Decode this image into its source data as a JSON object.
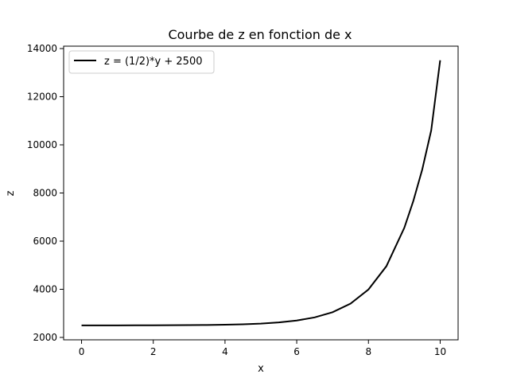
{
  "chart_data": {
    "type": "line",
    "title": "Courbe de z en fonction de x",
    "xlabel": "x",
    "ylabel": "z",
    "xlim": [
      -0.5,
      10.5
    ],
    "ylim": [
      1900,
      14100
    ],
    "xticks": [
      0,
      2,
      4,
      6,
      8,
      10
    ],
    "xtick_labels": [
      "0",
      "2",
      "4",
      "6",
      "8",
      "10"
    ],
    "yticks": [
      2000,
      4000,
      6000,
      8000,
      10000,
      12000,
      14000
    ],
    "ytick_labels": [
      "2000",
      "4000",
      "6000",
      "8000",
      "10000",
      "12000",
      "14000"
    ],
    "grid": false,
    "legend": {
      "position": "top-left"
    },
    "series": [
      {
        "name": "z = (1/2)*y + 2500",
        "color": "#000000",
        "x": [
          0,
          0.5,
          1,
          1.5,
          2,
          2.5,
          3,
          3.5,
          4,
          4.5,
          5,
          5.5,
          6,
          6.5,
          7,
          7.5,
          8,
          8.5,
          9,
          9.25,
          9.5,
          9.75,
          10
        ],
        "y": [
          2500,
          2500,
          2501,
          2502,
          2504,
          2506,
          2510,
          2517,
          2527,
          2545,
          2574,
          2622,
          2702,
          2832,
          3048,
          3404,
          3990,
          4957,
          6552,
          7662,
          8976,
          10599,
          13513
        ]
      }
    ]
  }
}
